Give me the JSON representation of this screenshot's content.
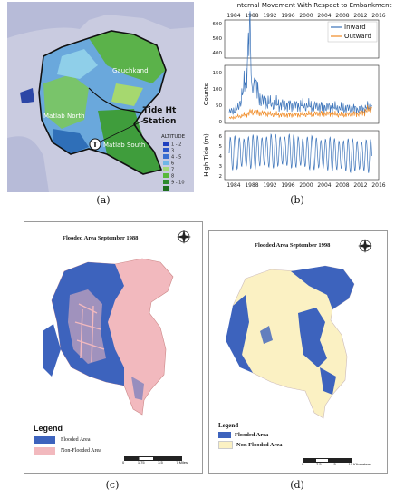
{
  "panels": {
    "a": {
      "caption": "(a)",
      "labels": {
        "gauchkandi": "Gauchkandi",
        "matlab_north": "Matlab North",
        "matlab_south": "Matlab South",
        "tide_station": "Tide Ht\nStation",
        "tide_station_line1": "Tide Ht",
        "tide_station_line2": "Station",
        "tide_marker": "T"
      },
      "altitude": {
        "title": "ALTITUDE",
        "items": [
          {
            "label": "1 - 2",
            "color": "#1f3fbf"
          },
          {
            "label": "3",
            "color": "#2a55c9"
          },
          {
            "label": "4 - 5",
            "color": "#3a6fd1"
          },
          {
            "label": "6",
            "color": "#6fb6e6"
          },
          {
            "label": "7",
            "color": "#a3d977"
          },
          {
            "label": "8",
            "color": "#57b83b"
          },
          {
            "label": "9 - 10",
            "color": "#2e8b2e"
          },
          {
            "label": "",
            "color": "#1e6f1e"
          }
        ]
      }
    },
    "b": {
      "caption": "(b)",
      "top_title": "Internal Movement With Respect to Embankment",
      "legend": [
        {
          "name": "Inward",
          "color": "#3b73b9"
        },
        {
          "name": "Outward",
          "color": "#f08a24"
        }
      ],
      "ylabel_top": "Counts",
      "ylabel_bottom": "High Tide (m)",
      "yticks_top_upper": [
        "600",
        "500",
        "400"
      ],
      "yticks_top_lower": [
        "150",
        "100",
        "50",
        "0"
      ],
      "yticks_bottom": [
        "6",
        "5",
        "4",
        "3",
        "2"
      ],
      "xticks": [
        "1984",
        "1988",
        "1992",
        "1996",
        "2000",
        "2004",
        "2008",
        "2012",
        "2016"
      ]
    },
    "c": {
      "caption": "(c)",
      "title": "Flooded Area September 1988",
      "legend_title": "Legend",
      "legend": [
        {
          "name": "Flooded Area",
          "color": "#3d63bd"
        },
        {
          "name": "Non-Flooded Area",
          "color": "#f2b9be"
        }
      ],
      "scale": [
        "0",
        "1.75",
        "3.5",
        "7 Miles"
      ]
    },
    "d": {
      "caption": "(d)",
      "title": "Flooded Area September 1998",
      "legend_title": "Legend",
      "legend": [
        {
          "name": "Flooded Area",
          "color": "#3d63bd"
        },
        {
          "name": "Non Flooded Area",
          "color": "#fbf1c3"
        }
      ],
      "scale": [
        "0",
        "2.5",
        "5",
        "10 Kilometers"
      ]
    }
  },
  "chart_data": [
    {
      "type": "line",
      "title": "Internal Movement With Respect to Embankment",
      "ylabel": "Counts",
      "x_range": [
        1982,
        2016
      ],
      "series": [
        {
          "name": "Inward",
          "x": [
            1983,
            1985,
            1986.5,
            1987.5,
            1988,
            1990,
            1992,
            1996,
            2000,
            2004,
            2008,
            2012,
            2014.5
          ],
          "values": [
            28,
            40,
            115,
            610,
            140,
            65,
            55,
            50,
            48,
            45,
            40,
            38,
            45
          ]
        },
        {
          "name": "Outward",
          "x": [
            1983,
            1986,
            1988,
            1992,
            1996,
            2000,
            2004,
            2008,
            2012,
            2014.5
          ],
          "values": [
            10,
            18,
            30,
            22,
            20,
            22,
            25,
            20,
            25,
            40
          ]
        }
      ]
    },
    {
      "type": "line",
      "ylabel": "High Tide (m)",
      "x_range": [
        1982,
        2016
      ],
      "ylim": [
        1.5,
        6.5
      ],
      "series": [
        {
          "name": "High Tide",
          "x": [
            1983,
            1990,
            1996,
            2002,
            2008,
            2014.5
          ],
          "values": [
            4.2,
            4.4,
            4.5,
            4.2,
            4.0,
            3.9
          ]
        }
      ]
    }
  ]
}
